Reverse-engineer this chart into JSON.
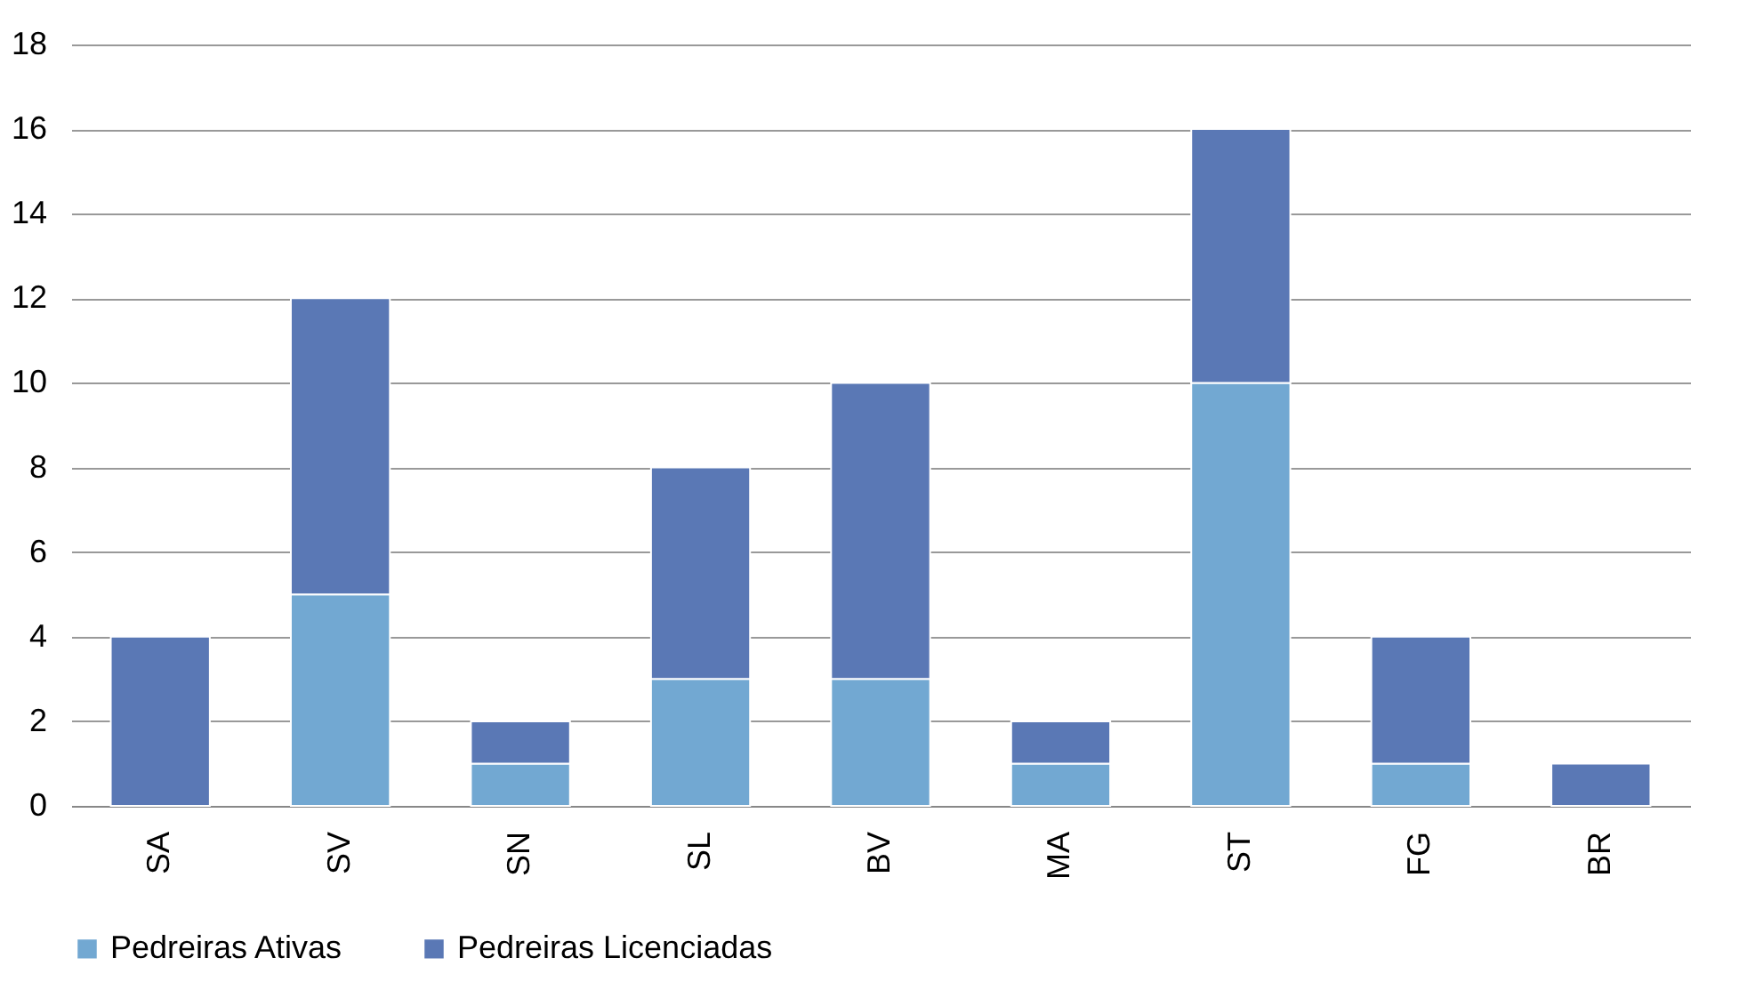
{
  "chart_data": {
    "type": "bar",
    "stacked": true,
    "categories": [
      "SA",
      "SV",
      "SN",
      "SL",
      "BV",
      "MA",
      "ST",
      "FG",
      "BR"
    ],
    "series": [
      {
        "name": "Pedreiras Ativas",
        "color": "#72a8d2",
        "values": [
          0,
          5,
          1,
          3,
          3,
          1,
          10,
          1,
          0
        ]
      },
      {
        "name": "Pedreiras Licenciadas",
        "color": "#5a78b5",
        "values": [
          4,
          7,
          1,
          5,
          7,
          1,
          6,
          3,
          1
        ]
      }
    ],
    "ylim": [
      0,
      18
    ],
    "yticks": [
      0,
      2,
      4,
      6,
      8,
      10,
      12,
      14,
      16,
      18
    ],
    "grid": "y",
    "legend": "bottom"
  }
}
